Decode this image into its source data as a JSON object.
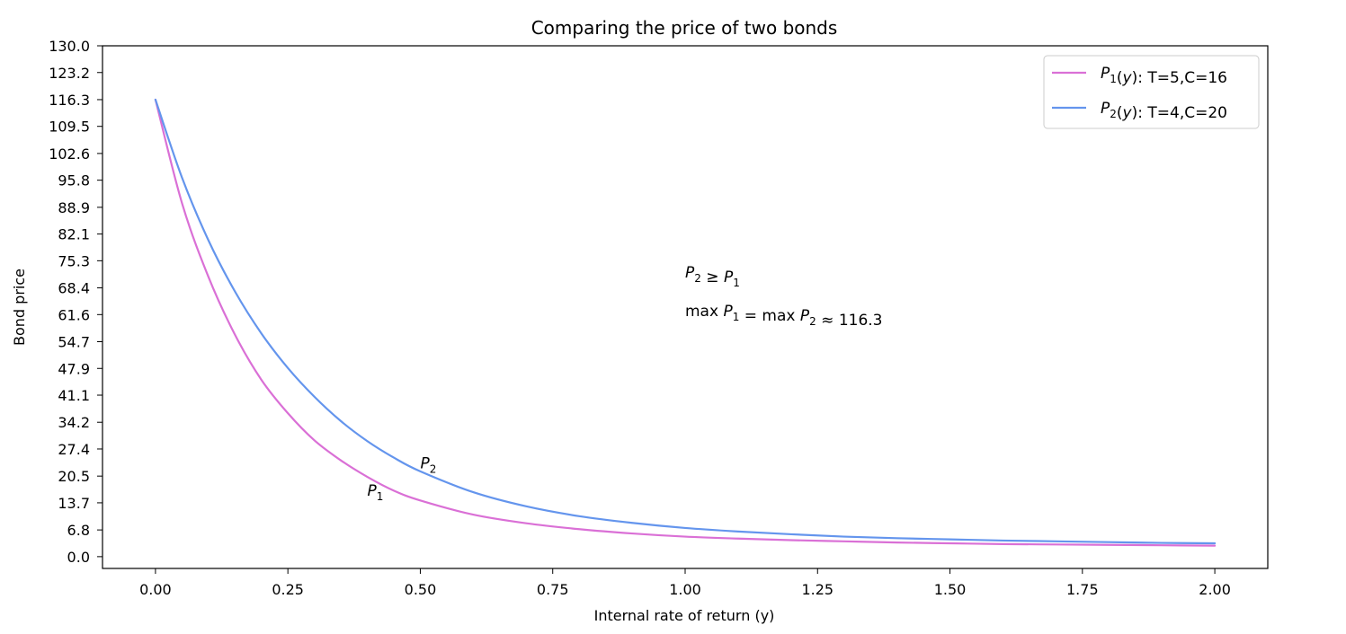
{
  "chart_data": {
    "type": "line",
    "title": "Comparing the price of two bonds",
    "xlabel": "Internal rate of return (y)",
    "ylabel": "Bond price",
    "xlim": [
      -0.1,
      2.1
    ],
    "ylim": [
      -3,
      130
    ],
    "x_ticks": [
      "0.00",
      "0.25",
      "0.50",
      "0.75",
      "1.00",
      "1.25",
      "1.50",
      "1.75",
      "2.00"
    ],
    "y_ticks": [
      "0.0",
      "6.8",
      "13.7",
      "20.5",
      "27.4",
      "34.2",
      "41.1",
      "47.9",
      "54.7",
      "61.6",
      "68.4",
      "75.3",
      "82.1",
      "88.9",
      "95.8",
      "102.6",
      "109.5",
      "116.3",
      "123.2",
      "130.0"
    ],
    "grid": false,
    "legend_position": "top-right",
    "series": [
      {
        "name": "P1(y): T=5,C=16",
        "color": "#da70d6",
        "x": [
          0.0,
          0.05,
          0.1,
          0.15,
          0.2,
          0.25,
          0.3,
          0.35,
          0.4,
          0.45,
          0.5,
          0.6,
          0.7,
          0.8,
          0.9,
          1.0,
          1.1,
          1.2,
          1.3,
          1.4,
          1.5,
          1.6,
          1.7,
          1.8,
          1.9,
          2.0
        ],
        "y": [
          116.3,
          90.0,
          71.2,
          56.5,
          45.0,
          36.5,
          29.6,
          24.5,
          20.3,
          16.8,
          14.3,
          10.7,
          8.5,
          7.0,
          5.9,
          5.1,
          4.6,
          4.2,
          3.9,
          3.6,
          3.4,
          3.2,
          3.1,
          3.0,
          2.9,
          2.8
        ]
      },
      {
        "name": "P2(y): T=4,C=20",
        "color": "#6495ed",
        "x": [
          0.0,
          0.05,
          0.1,
          0.15,
          0.2,
          0.25,
          0.3,
          0.35,
          0.4,
          0.45,
          0.5,
          0.6,
          0.7,
          0.8,
          0.9,
          1.0,
          1.1,
          1.2,
          1.3,
          1.4,
          1.5,
          1.6,
          1.7,
          1.8,
          1.9,
          2.0
        ],
        "y": [
          116.3,
          96.5,
          80.5,
          67.5,
          56.8,
          48.0,
          40.7,
          34.5,
          29.4,
          25.2,
          21.7,
          16.4,
          12.8,
          10.3,
          8.6,
          7.3,
          6.4,
          5.7,
          5.1,
          4.7,
          4.4,
          4.1,
          3.9,
          3.7,
          3.5,
          3.4
        ]
      }
    ],
    "legend": [
      {
        "prefix": "P",
        "sub": "1",
        "mid": "(y)",
        "suffix": ": T=5,C=16"
      },
      {
        "prefix": "P",
        "sub": "2",
        "mid": "(y)",
        "suffix": ": T=4,C=20"
      }
    ],
    "annotations": [
      {
        "id": "p2-label",
        "text": "P",
        "sub": "2",
        "x": 0.5,
        "y": 22.5
      },
      {
        "id": "p1-label",
        "text": "P",
        "sub": "1",
        "x": 0.4,
        "y": 15.5
      },
      {
        "id": "ineq",
        "x": 1.0,
        "y": 71.0,
        "parts": [
          "P",
          "2",
          " ≥ ",
          "P",
          "1"
        ]
      },
      {
        "id": "max-eq",
        "x": 1.0,
        "y": 61.2,
        "parts": [
          "max ",
          "P",
          "1",
          " = max ",
          "P",
          "2",
          " ≈ 116.3"
        ]
      }
    ]
  }
}
